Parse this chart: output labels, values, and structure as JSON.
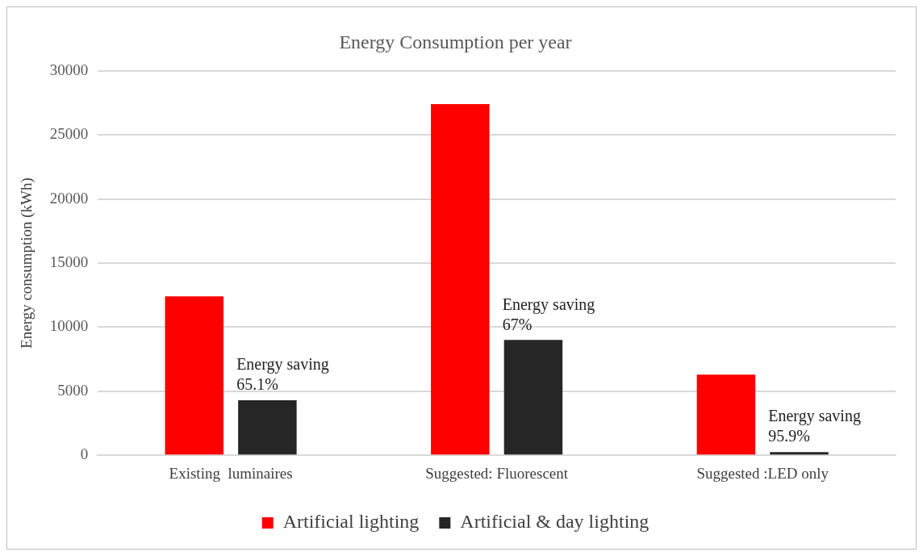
{
  "chart_data": {
    "type": "bar",
    "title": "Energy Consumption per year",
    "ylabel": "Energy consumption (kWh)",
    "categories": [
      "Existing  luminaires",
      "Suggested: Fluorescent",
      "Suggested :LED only"
    ],
    "series": [
      {
        "name": "Artificial lighting",
        "color": "#ff0000",
        "values": [
          12400,
          27400,
          6300
        ]
      },
      {
        "name": "Artificial & day lighting",
        "color": "#262626",
        "values": [
          4300,
          9000,
          250
        ]
      }
    ],
    "ylim": [
      0,
      30000
    ],
    "yticks": [
      0,
      5000,
      10000,
      15000,
      20000,
      25000,
      30000
    ],
    "grid": "y",
    "legend": "bottom",
    "annotations": [
      "Energy saving 65.1%",
      "Energy saving 67%",
      "Energy saving 95.9%"
    ]
  }
}
